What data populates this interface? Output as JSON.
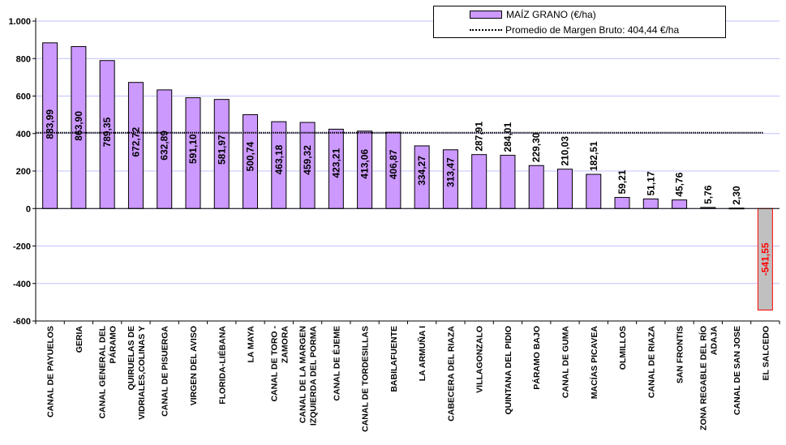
{
  "chart_data": {
    "type": "bar",
    "title": "",
    "xlabel": "",
    "ylabel": "",
    "ylim": [
      -600,
      1000
    ],
    "yticks": [
      1000,
      800,
      600,
      400,
      200,
      0,
      -200,
      -400,
      -600
    ],
    "ytick_labels": [
      "1.000",
      "800",
      "600",
      "400",
      "200",
      "0",
      "-200",
      "-400",
      "-600"
    ],
    "grid": true,
    "legend_position": "top-right",
    "categories": [
      "CANAL DE PAYUELOS",
      "GERIA",
      "CANAL GENERAL DEL PÁRAMO",
      "QUIRUELAS DE VIDRIALES,COLINAS Y",
      "CANAL DE PISUERGA",
      "VIRGEN DEL AVISO",
      "FLORIDA-LIÉBANA",
      "LA MAYA",
      "CANAL DE TORO - ZAMORA",
      "CANAL DE LA MARGEN IZQUIERDA DEL PORMA",
      "CANAL DE ÉJEME",
      "CANAL DE TORDESILLAS",
      "BABILAFUENTE",
      "LA ARMUÑA I",
      "CABECERA DEL RIAZA",
      "VILLAGONZALO",
      "QUINTANA DEL PIDIO",
      "PÁRAMO BAJO",
      "CANAL DE GUMA",
      "MACÍAS PICAVEA",
      "OLMILLOS",
      "CANAL DE RIAZA",
      "SAN FRONTIS",
      "ZONA REGABLE DEL RÍO ADAJA",
      "CANAL DE SAN JOSE",
      "EL SALCEDO"
    ],
    "category_lines": [
      [
        "CANAL DE PAYUELOS"
      ],
      [
        "GERIA"
      ],
      [
        "CANAL GENERAL DEL",
        "PÁRAMO"
      ],
      [
        "QUIRUELAS DE",
        "VIDRIALES,COLINAS Y"
      ],
      [
        "CANAL DE PISUERGA"
      ],
      [
        "VIRGEN DEL AVISO"
      ],
      [
        "FLORIDA-LIÉBANA"
      ],
      [
        "LA MAYA"
      ],
      [
        "CANAL DE TORO -",
        "ZAMORA"
      ],
      [
        "CANAL DE LA MARGEN",
        "IZQUIERDA DEL PORMA"
      ],
      [
        "CANAL DE ÉJEME"
      ],
      [
        "CANAL DE TORDESILLAS"
      ],
      [
        "BABILAFUENTE"
      ],
      [
        "LA ARMUÑA I"
      ],
      [
        "CABECERA DEL RIAZA"
      ],
      [
        "VILLAGONZALO"
      ],
      [
        "QUINTANA DEL PIDIO"
      ],
      [
        "PÁRAMO BAJO"
      ],
      [
        "CANAL DE GUMA"
      ],
      [
        "MACÍAS PICAVEA"
      ],
      [
        "OLMILLOS"
      ],
      [
        "CANAL DE RIAZA"
      ],
      [
        "SAN FRONTIS"
      ],
      [
        "ZONA REGABLE DEL RÍO",
        "ADAJA"
      ],
      [
        "CANAL DE SAN JOSE"
      ],
      [
        "EL SALCEDO"
      ]
    ],
    "series": [
      {
        "name": "MAÍZ GRANO (€/ha)",
        "values": [
          883.99,
          863.9,
          789.35,
          672.72,
          632.89,
          591.1,
          581.97,
          500.74,
          463.18,
          459.32,
          423.21,
          413.06,
          406.87,
          334.27,
          313.47,
          287.91,
          284.01,
          229.3,
          210.03,
          182.51,
          59.21,
          51.17,
          45.76,
          5.76,
          2.3,
          -541.55
        ],
        "labels": [
          "883,99",
          "863,90",
          "789,35",
          "672,72",
          "632,89",
          "591,10",
          "581,97",
          "500,74",
          "463,18",
          "459,32",
          "423,21",
          "413,06",
          "406,87",
          "334,27",
          "313,47",
          "287,91",
          "284,01",
          "229,30",
          "210,03",
          "182,51",
          "59,21",
          "51,17",
          "45,76",
          "5,76",
          "2,30",
          "-541,55"
        ],
        "color": "#cc99ff",
        "negative_color": "#c0c0c0",
        "negative_label_color": "#ff0000"
      }
    ],
    "reference_line": {
      "name": "Promedio de Margen Bruto: 404,44 €/ha",
      "value": 404.44,
      "style": "dotted"
    },
    "legend": [
      {
        "label": "MAÍZ GRANO (€/ha)",
        "kind": "bar"
      },
      {
        "label": "Promedio de Margen Bruto: 404,44 €/ha",
        "kind": "line"
      }
    ],
    "colors": {
      "plot_background": "#ffffff",
      "gridline": "#c0c0ff",
      "axis": "#000000"
    }
  }
}
